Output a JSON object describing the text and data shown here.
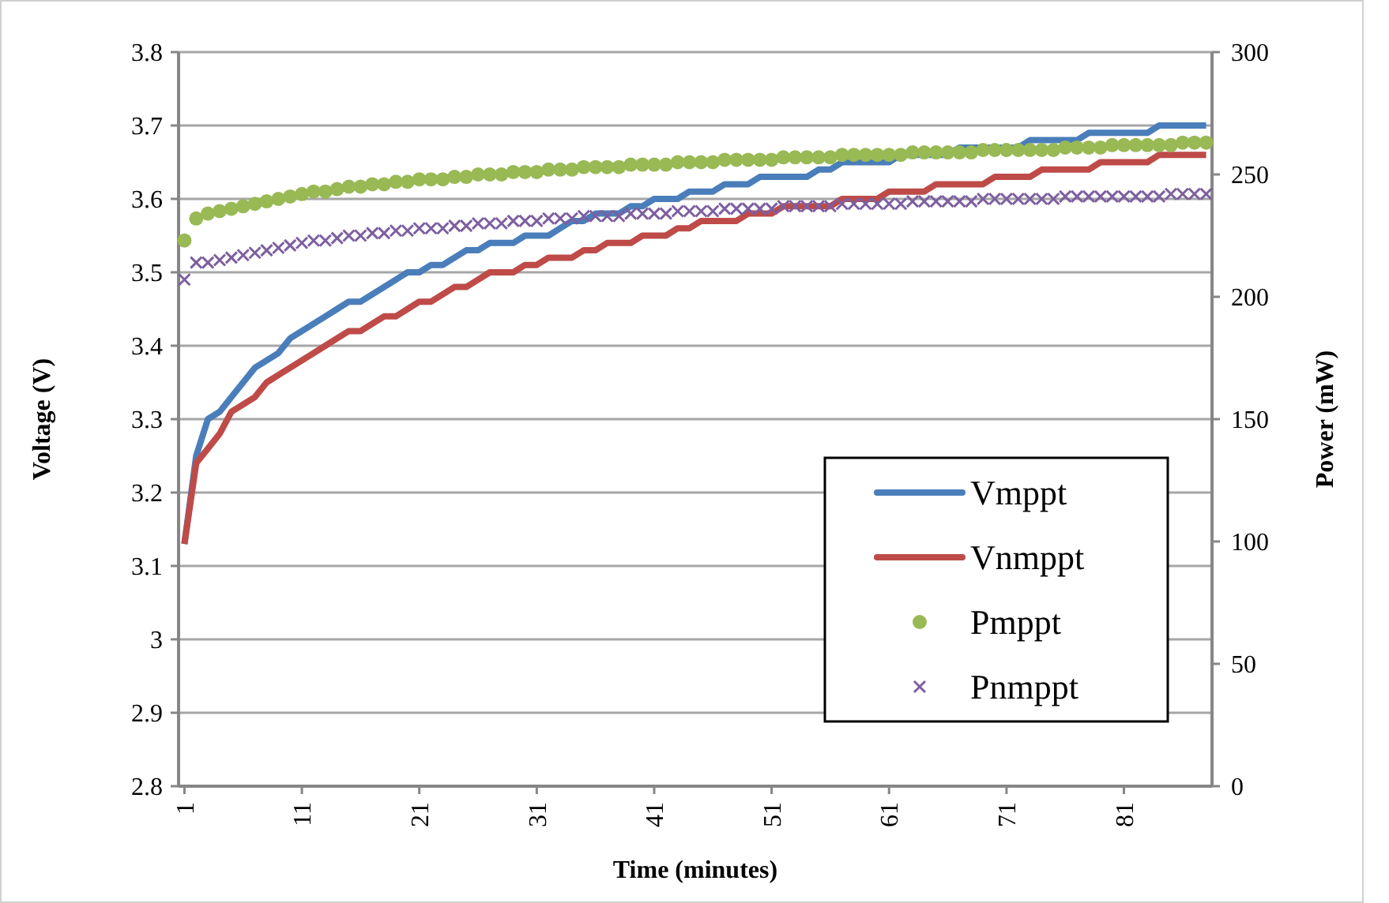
{
  "chart_data": {
    "type": "line",
    "xlabel": "Time (minutes)",
    "ylabel": "Voltage (V)",
    "y2label": "Power (mW)",
    "x": [
      1,
      2,
      3,
      4,
      5,
      6,
      7,
      8,
      9,
      10,
      11,
      12,
      13,
      14,
      15,
      16,
      17,
      18,
      19,
      20,
      21,
      22,
      23,
      24,
      25,
      26,
      27,
      28,
      29,
      30,
      31,
      32,
      33,
      34,
      35,
      36,
      37,
      38,
      39,
      40,
      41,
      42,
      43,
      44,
      45,
      46,
      47,
      48,
      49,
      50,
      51,
      52,
      53,
      54,
      55,
      56,
      57,
      58,
      59,
      60,
      61,
      62,
      63,
      64,
      65,
      66,
      67,
      68,
      69,
      70,
      71,
      72,
      73,
      74,
      75,
      76,
      77,
      78,
      79,
      80,
      81,
      82,
      83,
      84,
      85,
      86,
      87,
      88
    ],
    "xlim": [
      0.5,
      88.5
    ],
    "xticks": [
      1,
      11,
      21,
      31,
      41,
      51,
      61,
      71,
      81
    ],
    "ylim": [
      2.8,
      3.8
    ],
    "yticks": [
      2.8,
      2.9,
      3,
      3.1,
      3.2,
      3.3,
      3.4,
      3.5,
      3.6,
      3.7,
      3.8
    ],
    "y2lim": [
      0,
      300
    ],
    "y2ticks": [
      0,
      50,
      100,
      150,
      200,
      250,
      300
    ],
    "grid": "y",
    "legend": "bottom right",
    "series": [
      {
        "name": "Vmppt",
        "color": "#4a7ebb",
        "marker": "none",
        "values": [
          3.13,
          3.25,
          3.3,
          3.31,
          3.33,
          3.35,
          3.37,
          3.38,
          3.39,
          3.41,
          3.42,
          3.43,
          3.44,
          3.45,
          3.46,
          3.46,
          3.47,
          3.48,
          3.49,
          3.5,
          3.5,
          3.51,
          3.51,
          3.52,
          3.53,
          3.53,
          3.54,
          3.54,
          3.54,
          3.55,
          3.55,
          3.55,
          3.56,
          3.57,
          3.57,
          3.58,
          3.58,
          3.58,
          3.59,
          3.59,
          3.6,
          3.6,
          3.6,
          3.61,
          3.61,
          3.61,
          3.62,
          3.62,
          3.62,
          3.63,
          3.63,
          3.63,
          3.63,
          3.63,
          3.64,
          3.64,
          3.65,
          3.65,
          3.65,
          3.65,
          3.65,
          3.66,
          3.66,
          3.66,
          3.66,
          3.66,
          3.67,
          3.67,
          3.67,
          3.67,
          3.67,
          3.67,
          3.68,
          3.68,
          3.68,
          3.68,
          3.68,
          3.69,
          3.69,
          3.69,
          3.69,
          3.69,
          3.69,
          3.7,
          3.7,
          3.7,
          3.7,
          3.7
        ]
      },
      {
        "name": "Vnmppt",
        "color": "#be4b48",
        "marker": "none",
        "values": [
          3.13,
          3.24,
          3.26,
          3.28,
          3.31,
          3.32,
          3.33,
          3.35,
          3.36,
          3.37,
          3.38,
          3.39,
          3.4,
          3.41,
          3.42,
          3.42,
          3.43,
          3.44,
          3.44,
          3.45,
          3.46,
          3.46,
          3.47,
          3.48,
          3.48,
          3.49,
          3.5,
          3.5,
          3.5,
          3.51,
          3.51,
          3.52,
          3.52,
          3.52,
          3.53,
          3.53,
          3.54,
          3.54,
          3.54,
          3.55,
          3.55,
          3.55,
          3.56,
          3.56,
          3.57,
          3.57,
          3.57,
          3.57,
          3.58,
          3.58,
          3.58,
          3.59,
          3.59,
          3.59,
          3.59,
          3.59,
          3.6,
          3.6,
          3.6,
          3.6,
          3.61,
          3.61,
          3.61,
          3.61,
          3.62,
          3.62,
          3.62,
          3.62,
          3.62,
          3.63,
          3.63,
          3.63,
          3.63,
          3.64,
          3.64,
          3.64,
          3.64,
          3.64,
          3.65,
          3.65,
          3.65,
          3.65,
          3.65,
          3.66,
          3.66,
          3.66,
          3.66,
          3.66
        ]
      },
      {
        "name": "Pmppt",
        "type": "scatter",
        "axis": "y2",
        "color": "#98b954",
        "marker": "circle",
        "values": [
          223,
          232,
          234,
          235,
          236,
          237,
          238,
          239,
          240,
          241,
          242,
          243,
          243,
          244,
          245,
          245,
          246,
          246,
          247,
          247,
          248,
          248,
          248,
          249,
          249,
          250,
          250,
          250,
          251,
          251,
          251,
          252,
          252,
          252,
          253,
          253,
          253,
          253,
          254,
          254,
          254,
          254,
          255,
          255,
          255,
          255,
          256,
          256,
          256,
          256,
          256,
          257,
          257,
          257,
          257,
          257,
          258,
          258,
          258,
          258,
          258,
          258,
          259,
          259,
          259,
          259,
          259,
          259,
          260,
          260,
          260,
          260,
          260,
          260,
          260,
          261,
          261,
          261,
          261,
          262,
          262,
          262,
          262,
          262,
          262,
          263,
          263,
          263
        ]
      },
      {
        "name": "Pnmppt",
        "type": "scatter",
        "axis": "y2",
        "color": "#7d5fa0",
        "marker": "cross",
        "values": [
          207,
          214,
          214,
          215,
          216,
          217,
          218,
          219,
          220,
          221,
          222,
          223,
          223,
          224,
          225,
          225,
          226,
          226,
          227,
          227,
          228,
          228,
          228,
          229,
          229,
          230,
          230,
          230,
          231,
          231,
          231,
          232,
          232,
          232,
          233,
          233,
          233,
          233,
          234,
          234,
          234,
          234,
          235,
          235,
          235,
          235,
          236,
          236,
          236,
          236,
          236,
          237,
          237,
          237,
          237,
          237,
          238,
          238,
          238,
          238,
          238,
          238,
          239,
          239,
          239,
          239,
          239,
          239,
          240,
          240,
          240,
          240,
          240,
          240,
          240,
          241,
          241,
          241,
          241,
          241,
          241,
          241,
          241,
          241,
          242,
          242,
          242,
          242
        ]
      }
    ]
  }
}
